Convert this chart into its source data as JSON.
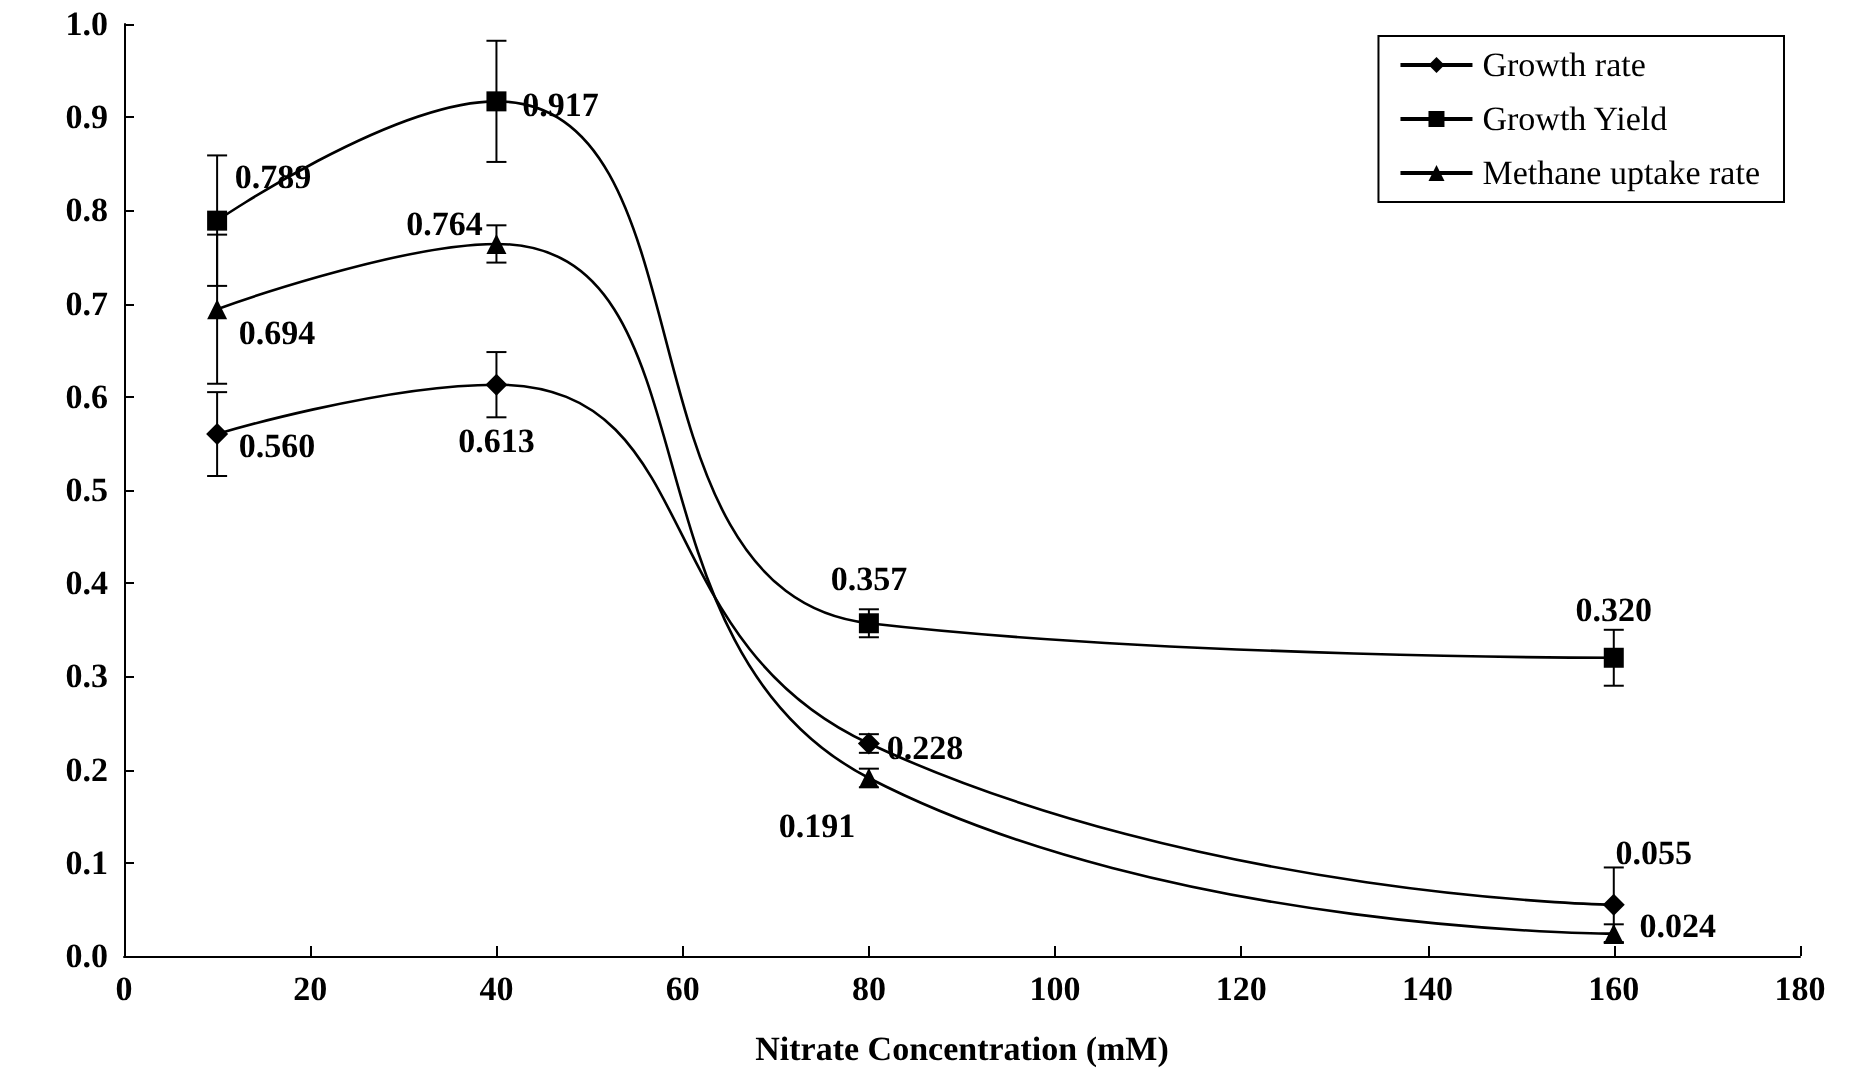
{
  "chart_data": {
    "type": "line",
    "xlabel": "Nitrate Concentration (mM)",
    "x": [
      10,
      40,
      80,
      160
    ],
    "series": [
      {
        "name": "Growth rate",
        "color": "#000000",
        "marker": "diamond",
        "values": [
          0.56,
          0.613,
          0.228,
          0.055
        ],
        "value_labels": [
          "0.560",
          "0.613",
          "0.228",
          "0.055"
        ],
        "errors": [
          0.045,
          0.035,
          0.01,
          0.04
        ]
      },
      {
        "name": "Growth Yield",
        "color": "#000000",
        "marker": "square",
        "values": [
          0.789,
          0.917,
          0.357,
          0.32
        ],
        "value_labels": [
          "0.789",
          "0.917",
          "0.357",
          "0.320"
        ],
        "errors": [
          0.07,
          0.065,
          0.015,
          0.03
        ]
      },
      {
        "name": "Methane uptake rate",
        "color": "#000000",
        "marker": "triangle",
        "values": [
          0.694,
          0.764,
          0.191,
          0.024
        ],
        "value_labels": [
          "0.694",
          "0.764",
          "0.191",
          "0.024"
        ],
        "errors": [
          0.08,
          0.02,
          0.01,
          0.01
        ]
      }
    ],
    "xlim": [
      0,
      180
    ],
    "xticks": [
      0,
      20,
      40,
      60,
      80,
      100,
      120,
      140,
      160,
      180
    ],
    "ylim": [
      0,
      1
    ],
    "yticks": [
      {
        "value": 0,
        "label": "0.0"
      },
      {
        "value": 0.1,
        "label": "0.1"
      },
      {
        "value": 0.2,
        "label": "0.2"
      },
      {
        "value": 0.3,
        "label": "0.3"
      },
      {
        "value": 0.4,
        "label": "0.4"
      },
      {
        "value": 0.5,
        "label": "0.5"
      },
      {
        "value": 0.6,
        "label": "0.6"
      },
      {
        "value": 0.7,
        "label": "0.7"
      },
      {
        "value": 0.8,
        "label": "0.8"
      },
      {
        "value": 0.9,
        "label": "0.9"
      },
      {
        "value": 1,
        "label": "1.0"
      }
    ],
    "legend": "top right",
    "grid": false,
    "line_style": "solid"
  }
}
